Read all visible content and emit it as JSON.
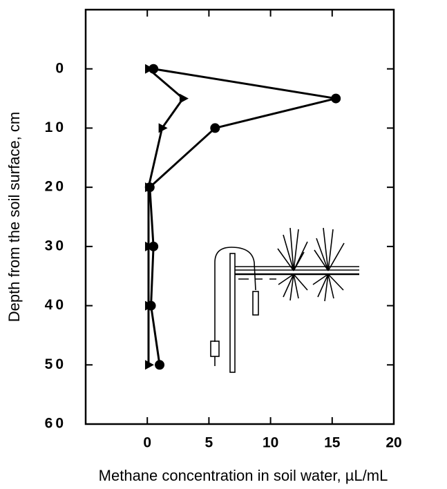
{
  "chart_data": {
    "type": "line",
    "orientation": "horizontal",
    "x_label": "Methane concentration in soil water, µL/mL",
    "y_label": "Depth from the soil surface, cm",
    "y": [
      0,
      5,
      10,
      20,
      30,
      40,
      50
    ],
    "series": [
      {
        "color": "#000000",
        "marker": "circle",
        "values": [
          0.5,
          15.3,
          5.5,
          0.2,
          0.5,
          0.3,
          1.0
        ]
      },
      {
        "color": "#000000",
        "marker": "triangle-right",
        "values": [
          0.1,
          2.9,
          1.2,
          0.1,
          0.1,
          0.1,
          0.1
        ]
      }
    ],
    "xlim": [
      -5,
      20
    ],
    "xticks": [
      0,
      5,
      10,
      15,
      20
    ],
    "ylim": [
      -10,
      60
    ],
    "yticks": [
      0,
      10,
      20,
      30,
      40,
      50,
      60
    ],
    "y_inverted": true
  }
}
